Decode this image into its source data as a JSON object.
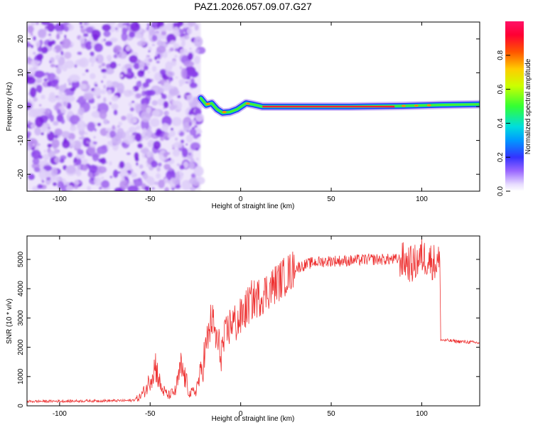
{
  "title": "PAZ1.2026.057.09.07.G27",
  "chart_data": [
    {
      "type": "heatmap",
      "xlabel": "Height of straight line (km)",
      "ylabel": "Frequency (Hz)",
      "xlim": [
        -118,
        132
      ],
      "ylim": [
        -25,
        25
      ],
      "xticks": [
        -100,
        -50,
        0,
        50,
        100
      ],
      "yticks": [
        -20,
        -10,
        0,
        10,
        20
      ],
      "noise_region_x": [
        -118,
        -22
      ],
      "ridge": [
        {
          "x": -22,
          "f": 2.5
        },
        {
          "x": -19,
          "f": 0.5
        },
        {
          "x": -16,
          "f": 1.0
        },
        {
          "x": -13,
          "f": -0.8
        },
        {
          "x": -10,
          "f": -1.8
        },
        {
          "x": -6,
          "f": -1.6
        },
        {
          "x": -2,
          "f": -0.8
        },
        {
          "x": 3,
          "f": 1.0
        },
        {
          "x": 7,
          "f": 0.6
        },
        {
          "x": 12,
          "f": 0.0
        },
        {
          "x": 30,
          "f": 0.0
        },
        {
          "x": 60,
          "f": 0.0
        },
        {
          "x": 90,
          "f": 0.2
        },
        {
          "x": 110,
          "f": 0.5
        },
        {
          "x": 132,
          "f": 0.7
        }
      ],
      "colorbar": {
        "label": "Normalized spectral amplitude",
        "range": [
          0,
          1
        ],
        "ticks": [
          "0.0",
          "0.2",
          "0.4",
          "0.6",
          "0.8"
        ],
        "tick_values": [
          0,
          0.2,
          0.4,
          0.6,
          0.8
        ]
      }
    },
    {
      "type": "line",
      "xlabel": "Height of straight line (km)",
      "ylabel": "SNR (10 * v/v)",
      "xlim": [
        -118,
        132
      ],
      "ylim": [
        0,
        5800
      ],
      "xticks": [
        -100,
        -50,
        0,
        50,
        100
      ],
      "yticks": [
        0,
        1000,
        2000,
        3000,
        4000,
        5000
      ],
      "color": "#ee3333",
      "series": [
        {
          "name": "SNR",
          "x": [
            -118,
            -60,
            -56,
            -52,
            -49,
            -47,
            -44,
            -40,
            -36,
            -33,
            -31,
            -28,
            -25,
            -22,
            -19,
            -16,
            -14,
            -11,
            -8,
            -5,
            -2,
            2,
            6,
            10,
            16,
            22,
            30,
            40,
            50,
            60,
            70,
            80,
            88,
            92,
            95,
            100,
            104,
            107,
            110,
            110.5,
            120,
            132
          ],
          "y": [
            150,
            180,
            280,
            600,
            1100,
            1400,
            600,
            350,
            500,
            1300,
            1000,
            400,
            500,
            1100,
            2000,
            3000,
            2400,
            1800,
            2400,
            2900,
            2800,
            3200,
            3600,
            3700,
            4000,
            4300,
            4700,
            4900,
            4950,
            4950,
            5000,
            5000,
            5000,
            4900,
            4800,
            5100,
            5000,
            4900,
            4900,
            2250,
            2200,
            2150
          ]
        }
      ]
    }
  ]
}
